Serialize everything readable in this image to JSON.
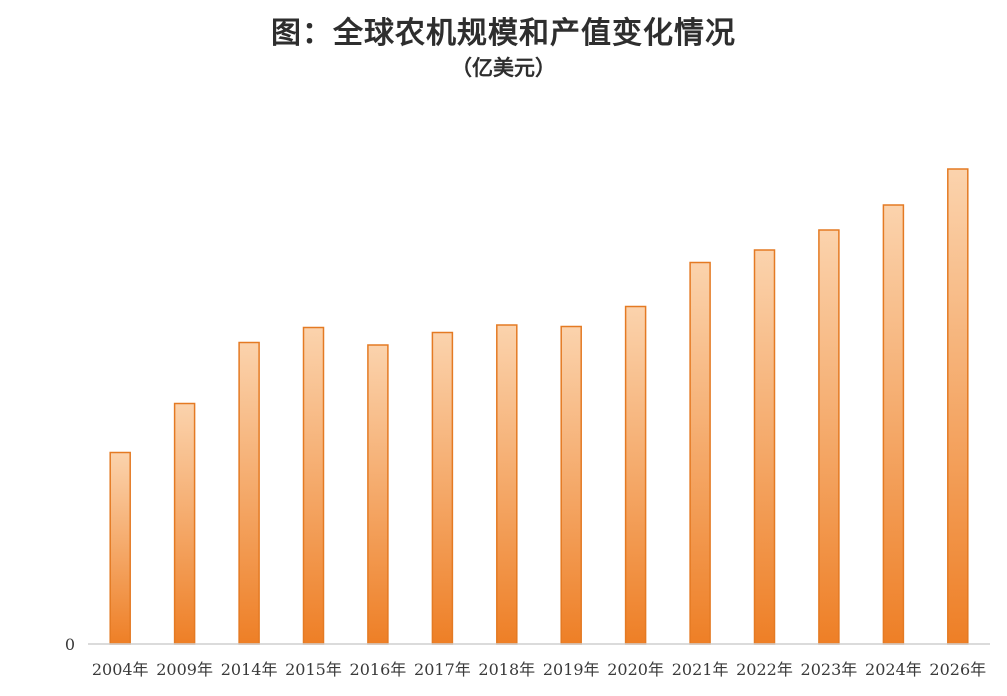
{
  "chart_data": {
    "type": "bar",
    "title": "图：全球农机规模和产值变化情况",
    "subtitle": "（亿美元）",
    "categories": [
      "2004年",
      "2009年",
      "2014年",
      "2015年",
      "2016年",
      "2017年",
      "2018年",
      "2019年",
      "2020年",
      "2021年",
      "2022年",
      "2023年",
      "2024年",
      "2026年"
    ],
    "values": [
      766,
      962,
      1206,
      1266,
      1196,
      1246,
      1276,
      1270,
      1350,
      1526,
      1576,
      1656,
      1756,
      1900
    ],
    "xlabel": "",
    "ylabel": "",
    "ylim": [
      0,
      2000
    ],
    "y_tick_labels": [
      "0"
    ],
    "grid": false,
    "legend": "none",
    "bar_color_top": "#fbd3ad",
    "bar_color_bottom": "#ee7f26",
    "bar_border_color": "#e47a23"
  }
}
